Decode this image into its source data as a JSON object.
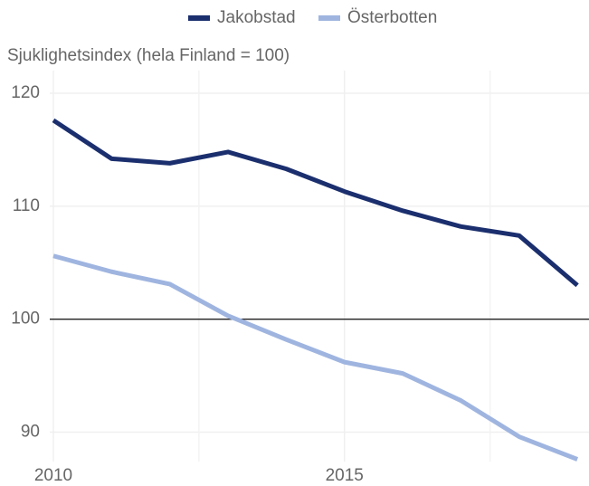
{
  "chart_data": {
    "type": "line",
    "y_label": "Sjuklighetsindex (hela Finland = 100)",
    "x": [
      2010,
      2011,
      2012,
      2013,
      2014,
      2015,
      2016,
      2017,
      2018,
      2019
    ],
    "series": [
      {
        "name": "Jakobstad",
        "color": "#1b2f6e",
        "values": [
          117.6,
          114.2,
          113.8,
          114.8,
          113.3,
          111.3,
          109.6,
          108.2,
          107.4,
          103.0
        ]
      },
      {
        "name": "Österbotten",
        "color": "#9fb5e0",
        "values": [
          105.6,
          104.2,
          103.1,
          100.3,
          98.2,
          96.2,
          95.2,
          92.8,
          89.6,
          87.6
        ]
      }
    ],
    "xlim": [
      2010,
      2019.2
    ],
    "xticks": [
      2010,
      2015
    ],
    "x_minor_grid": [
      2012.5,
      2017.5
    ],
    "ylim": [
      87.4,
      122
    ],
    "yticks": [
      90,
      100,
      110,
      120
    ],
    "reference_line": 100,
    "grid": true,
    "legend": "top"
  }
}
